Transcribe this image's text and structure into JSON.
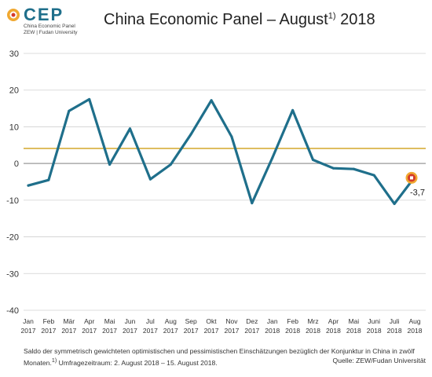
{
  "logo": {
    "text": "CEP",
    "sub1": "China Economic Panel",
    "sub2": "ZEW | Fudan University"
  },
  "title": "China Economic Panel – August",
  "title_sup": "1)",
  "title_year": "2018",
  "footnote": {
    "line1": "Saldo der symmetrisch gewichteten optimistischen und pessimistischen Einschätzungen bezüglich der Konjunktur in China in zwölf Monaten.",
    "sup": "1)",
    "line2": " Umfragezeitraum: 2. August 2018 – 15. August 2018.",
    "source": "Quelle: ZEW/Fudan Universität"
  },
  "colors": {
    "series": "#1f6f8b",
    "reference": "#d4a72c",
    "marker": "#d43a2a",
    "grid": "#d0d0d0"
  },
  "chart_data": {
    "type": "line",
    "ylim": [
      -40,
      30
    ],
    "yticks": [
      30,
      20,
      10,
      0,
      -10,
      -20,
      -30,
      -40
    ],
    "grid": true,
    "categories": [
      [
        "Jan",
        "2017"
      ],
      [
        "Feb",
        "2017"
      ],
      [
        "Mär",
        "2017"
      ],
      [
        "Apr",
        "2017"
      ],
      [
        "Mai",
        "2017"
      ],
      [
        "Jun",
        "2017"
      ],
      [
        "Jul",
        "2017"
      ],
      [
        "Aug",
        "2017"
      ],
      [
        "Sep",
        "2017"
      ],
      [
        "Okt",
        "2017"
      ],
      [
        "Nov",
        "2017"
      ],
      [
        "Dez",
        "2017"
      ],
      [
        "Jan",
        "2018"
      ],
      [
        "Feb",
        "2018"
      ],
      [
        "Mrz",
        "2018"
      ],
      [
        "Apr",
        "2018"
      ],
      [
        "Mai",
        "2018"
      ],
      [
        "Juni",
        "2018"
      ],
      [
        "Juli",
        "2018"
      ],
      [
        "Aug",
        "2018"
      ]
    ],
    "series": [
      {
        "values": [
          -6.0,
          -4.5,
          14.3,
          17.5,
          -0.3,
          9.5,
          -4.3,
          -0.3,
          8.0,
          17.2,
          7.3,
          -10.8,
          1.5,
          14.5,
          1.0,
          -1.3,
          -1.5,
          -3.2,
          -11.0,
          -3.7
        ]
      }
    ],
    "reference_line": 4.1,
    "last_value_label": "-3,7"
  }
}
